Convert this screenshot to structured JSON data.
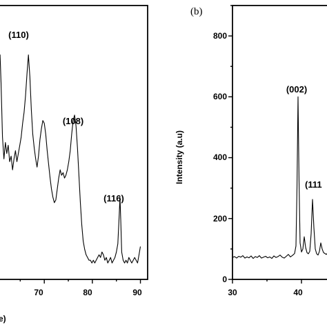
{
  "chart_data": [
    {
      "panel": "left",
      "type": "line",
      "xlabel": "e)",
      "ylabel": "",
      "xlim": [
        60.5,
        91.5
      ],
      "ylim": [
        0,
        100
      ],
      "x_ticks": [
        "70",
        "80",
        "90"
      ],
      "grid": false,
      "series": [
        {
          "points": [
            [
              60.5,
              80
            ],
            [
              60.8,
              82
            ],
            [
              61.0,
              72
            ],
            [
              61.3,
              52
            ],
            [
              61.6,
              44
            ],
            [
              61.9,
              50
            ],
            [
              62.2,
              46
            ],
            [
              62.5,
              49
            ],
            [
              62.8,
              43
            ],
            [
              63.1,
              45
            ],
            [
              63.4,
              40
            ],
            [
              63.7,
              44
            ],
            [
              64.0,
              47
            ],
            [
              64.3,
              43
            ],
            [
              64.6,
              46
            ],
            [
              64.9,
              49
            ],
            [
              65.2,
              52
            ],
            [
              65.5,
              57
            ],
            [
              65.8,
              61
            ],
            [
              66.1,
              67
            ],
            [
              66.4,
              75
            ],
            [
              66.7,
              82
            ],
            [
              67.0,
              74
            ],
            [
              67.3,
              62
            ],
            [
              67.6,
              53
            ],
            [
              67.9,
              48
            ],
            [
              68.2,
              44
            ],
            [
              68.5,
              41
            ],
            [
              68.8,
              45
            ],
            [
              69.1,
              51
            ],
            [
              69.4,
              55
            ],
            [
              69.7,
              58
            ],
            [
              70.0,
              57
            ],
            [
              70.3,
              53
            ],
            [
              70.6,
              47
            ],
            [
              70.9,
              42
            ],
            [
              71.2,
              37
            ],
            [
              71.5,
              33
            ],
            [
              71.8,
              30
            ],
            [
              72.1,
              28
            ],
            [
              72.4,
              29
            ],
            [
              72.7,
              33
            ],
            [
              73.0,
              37
            ],
            [
              73.3,
              40
            ],
            [
              73.6,
              38
            ],
            [
              73.9,
              39
            ],
            [
              74.2,
              37
            ],
            [
              74.5,
              38
            ],
            [
              74.8,
              40
            ],
            [
              75.1,
              43
            ],
            [
              75.4,
              47
            ],
            [
              75.7,
              53
            ],
            [
              76.0,
              58
            ],
            [
              76.3,
              60
            ],
            [
              76.6,
              56
            ],
            [
              76.9,
              48
            ],
            [
              77.2,
              38
            ],
            [
              77.5,
              28
            ],
            [
              77.8,
              20
            ],
            [
              78.1,
              14
            ],
            [
              78.4,
              11
            ],
            [
              78.7,
              9
            ],
            [
              79.0,
              8
            ],
            [
              79.3,
              7
            ],
            [
              79.6,
              7
            ],
            [
              79.9,
              6
            ],
            [
              80.2,
              7
            ],
            [
              80.5,
              6
            ],
            [
              80.8,
              7
            ],
            [
              81.1,
              8
            ],
            [
              81.4,
              9
            ],
            [
              81.7,
              8
            ],
            [
              82.0,
              10
            ],
            [
              82.3,
              9
            ],
            [
              82.6,
              7
            ],
            [
              82.9,
              8
            ],
            [
              83.2,
              6
            ],
            [
              83.5,
              7
            ],
            [
              83.8,
              8
            ],
            [
              84.1,
              6
            ],
            [
              84.4,
              7
            ],
            [
              84.7,
              8
            ],
            [
              85.0,
              10
            ],
            [
              85.3,
              13
            ],
            [
              85.6,
              24
            ],
            [
              85.75,
              30
            ],
            [
              85.9,
              22
            ],
            [
              86.1,
              10
            ],
            [
              86.4,
              7
            ],
            [
              86.7,
              6
            ],
            [
              87.0,
              7
            ],
            [
              87.3,
              6
            ],
            [
              87.6,
              8
            ],
            [
              87.9,
              7
            ],
            [
              88.2,
              6
            ],
            [
              88.5,
              7
            ],
            [
              88.8,
              8
            ],
            [
              89.1,
              7
            ],
            [
              89.4,
              6
            ],
            [
              89.7,
              9
            ],
            [
              90.0,
              12
            ]
          ]
        }
      ],
      "annotations": [
        {
          "text": "(110)",
          "x": 66.7,
          "y": 82
        },
        {
          "text": "(108)",
          "x": 76.3,
          "y": 60
        },
        {
          "text": "(116)",
          "x": 85.75,
          "y": 30
        }
      ]
    },
    {
      "panel": "(b)",
      "type": "line",
      "xlabel": "",
      "ylabel": "Intensity  (a.u)",
      "xlim": [
        30,
        45
      ],
      "ylim": [
        0,
        900
      ],
      "x_ticks": [
        "30",
        "40"
      ],
      "y_ticks": [
        "0",
        "200",
        "400",
        "600",
        "800"
      ],
      "grid": false,
      "series": [
        {
          "points": [
            [
              30.0,
              72
            ],
            [
              30.3,
              75
            ],
            [
              30.6,
              70
            ],
            [
              30.9,
              76
            ],
            [
              31.2,
              73
            ],
            [
              31.5,
              78
            ],
            [
              31.8,
              70
            ],
            [
              32.1,
              74
            ],
            [
              32.4,
              71
            ],
            [
              32.7,
              77
            ],
            [
              33.0,
              69
            ],
            [
              33.3,
              75
            ],
            [
              33.6,
              72
            ],
            [
              33.9,
              78
            ],
            [
              34.2,
              70
            ],
            [
              34.5,
              73
            ],
            [
              34.8,
              76
            ],
            [
              35.1,
              71
            ],
            [
              35.4,
              74
            ],
            [
              35.7,
              69
            ],
            [
              36.0,
              77
            ],
            [
              36.3,
              72
            ],
            [
              36.6,
              75
            ],
            [
              36.9,
              80
            ],
            [
              37.2,
              73
            ],
            [
              37.5,
              70
            ],
            [
              37.8,
              76
            ],
            [
              38.1,
              82
            ],
            [
              38.4,
              74
            ],
            [
              38.7,
              79
            ],
            [
              39.0,
              85
            ],
            [
              39.2,
              110
            ],
            [
              39.35,
              300
            ],
            [
              39.5,
              600
            ],
            [
              39.65,
              320
            ],
            [
              39.8,
              120
            ],
            [
              40.0,
              90
            ],
            [
              40.2,
              100
            ],
            [
              40.4,
              140
            ],
            [
              40.6,
              105
            ],
            [
              40.8,
              88
            ],
            [
              41.0,
              84
            ],
            [
              41.2,
              92
            ],
            [
              41.4,
              150
            ],
            [
              41.6,
              263
            ],
            [
              41.8,
              170
            ],
            [
              42.0,
              100
            ],
            [
              42.2,
              84
            ],
            [
              42.4,
              80
            ],
            [
              42.6,
              92
            ],
            [
              42.8,
              120
            ],
            [
              43.0,
              100
            ],
            [
              43.2,
              88
            ],
            [
              43.4,
              85
            ],
            [
              43.6,
              82
            ],
            [
              43.8,
              87
            ],
            [
              44.0,
              95
            ],
            [
              44.2,
              84
            ],
            [
              44.5,
              82
            ],
            [
              45.0,
              86
            ]
          ]
        }
      ],
      "annotations": [
        {
          "text": "(002)",
          "x": 39.5,
          "y": 600
        },
        {
          "text": "(111",
          "x": 41.6,
          "y": 263
        }
      ]
    }
  ]
}
